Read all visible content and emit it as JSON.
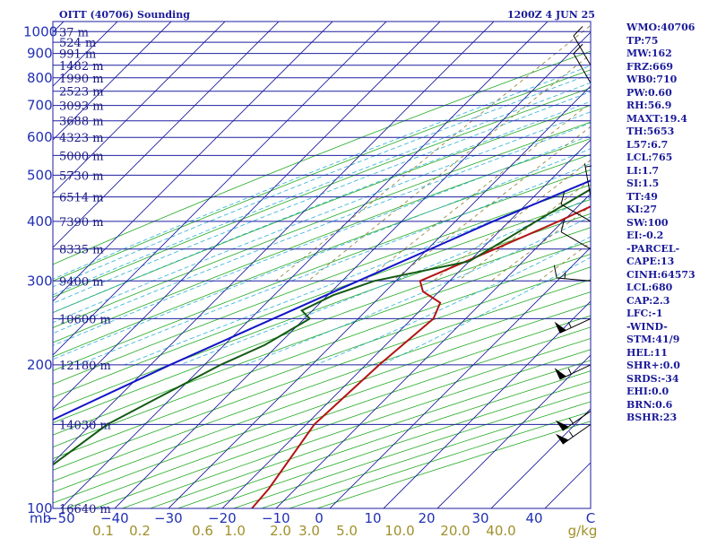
{
  "header": {
    "station_label": "OITT (40706) Sounding",
    "time_label": "1200Z  4 JUN 25"
  },
  "indices": [
    "WMO:40706",
    "TP:75",
    "MW:162",
    "FRZ:669",
    "WB0:710",
    "PW:0.60",
    "RH:56.9",
    "MAXT:19.4",
    "TH:5653",
    "L57:6.7",
    "LCL:765",
    "LI:1.7",
    "SI:1.5",
    "TT:49",
    "KI:27",
    "SW:100",
    "EI:-0.2",
    "-PARCEL-",
    "CAPE:13",
    "CINH:64573",
    "LCL:680",
    "CAP:2.3",
    "LFC:-1",
    "-WIND-",
    "STM:41/9",
    "HEL:11",
    "SHR+:0.0",
    "SRDS:-34",
    "EHI:0.0",
    "BRN:0.6",
    "BSHR:23"
  ],
  "colors": {
    "isobar": "#1e1ea0",
    "isotherm": "#1e1ea0",
    "dry_adiabat": "#22aa22",
    "moist_adiabat": "#2cb0d8",
    "mixing_ratio": "#8a7a2a",
    "temperature": "#b41414",
    "dewpoint": "#145a14",
    "parcel": "#1414c8",
    "wind": "#000000"
  },
  "chart_data": {
    "type": "skew-t",
    "title": "OITT (40706) Sounding",
    "pressure_axis": {
      "unit": "mb",
      "ticks": [
        100,
        200,
        300,
        400,
        500,
        600,
        700,
        800,
        900,
        1000
      ],
      "range": [
        1050,
        100
      ],
      "scale": "log"
    },
    "temperature_axis": {
      "unit": "C",
      "ticks": [
        -50,
        -40,
        -30,
        -20,
        -10,
        0,
        10,
        20,
        30,
        40
      ],
      "range": [
        -50,
        50
      ]
    },
    "height_labels": [
      {
        "p": 100,
        "label": "16640 m"
      },
      {
        "p": 150,
        "label": "14030 m"
      },
      {
        "p": 200,
        "label": "12180 m"
      },
      {
        "p": 250,
        "label": "10600 m"
      },
      {
        "p": 300,
        "label": "9400 m"
      },
      {
        "p": 350,
        "label": "8335 m"
      },
      {
        "p": 400,
        "label": "7390 m"
      },
      {
        "p": 450,
        "label": "6514 m"
      },
      {
        "p": 500,
        "label": "5730 m"
      },
      {
        "p": 550,
        "label": "5000 m"
      },
      {
        "p": 600,
        "label": "4323 m"
      },
      {
        "p": 650,
        "label": "3688 m"
      },
      {
        "p": 700,
        "label": "3093 m"
      },
      {
        "p": 750,
        "label": "2523 m"
      },
      {
        "p": 800,
        "label": "1990 m"
      },
      {
        "p": 850,
        "label": "1482 m"
      },
      {
        "p": 900,
        "label": "991 m"
      },
      {
        "p": 950,
        "label": "524 m"
      },
      {
        "p": 1000,
        "label": "37 m"
      }
    ],
    "mixing_ratio_ticks": [
      "0.1",
      "0.2",
      "0.6",
      "1.0",
      "2.0",
      "3.0",
      "5.0",
      "10.0",
      "20.0",
      "40.0",
      "g/kg"
    ],
    "series": [
      {
        "name": "temperature",
        "points": [
          [
            848,
            21.6
          ],
          [
            840,
            21.7
          ],
          [
            800,
            17
          ],
          [
            750,
            13.6
          ],
          [
            700,
            10
          ],
          [
            665,
            6.6
          ],
          [
            640,
            6.8
          ],
          [
            610,
            4.5
          ],
          [
            560,
            2.4
          ],
          [
            500,
            -1.8
          ],
          [
            450,
            -5.6
          ],
          [
            400,
            -10.8
          ],
          [
            350,
            -17.5
          ],
          [
            300,
            -25.5
          ],
          [
            285,
            -23
          ],
          [
            270,
            -17.7
          ],
          [
            250,
            -16
          ],
          [
            200,
            -17.5
          ],
          [
            150,
            -18.5
          ],
          [
            110,
            -15
          ],
          [
            100,
            -14.5
          ]
        ]
      },
      {
        "name": "dewpoint",
        "points": [
          [
            848,
            13.6
          ],
          [
            840,
            8.3
          ],
          [
            800,
            8.6
          ],
          [
            750,
            7.7
          ],
          [
            700,
            11.5
          ],
          [
            680,
            10
          ],
          [
            640,
            2
          ],
          [
            600,
            -1.5
          ],
          [
            580,
            -2
          ],
          [
            560,
            2.1
          ],
          [
            530,
            -4
          ],
          [
            500,
            -9
          ],
          [
            400,
            -15
          ],
          [
            330,
            -20
          ],
          [
            300,
            -34
          ],
          [
            280,
            -39
          ],
          [
            260,
            -42
          ],
          [
            250,
            -39
          ],
          [
            220,
            -42.5
          ],
          [
            200,
            -47
          ],
          [
            150,
            -57
          ],
          [
            120,
            -60
          ],
          [
            100,
            -61.7
          ]
        ]
      },
      {
        "name": "parcel",
        "points": [
          [
            848,
            21.6
          ],
          [
            800,
            16.3
          ],
          [
            765,
            12.2
          ],
          [
            700,
            5.8
          ],
          [
            600,
            -2.5
          ],
          [
            500,
            -11
          ],
          [
            400,
            -23
          ],
          [
            300,
            -37
          ],
          [
            250,
            -45.8
          ],
          [
            200,
            -56.4
          ],
          [
            150,
            -69
          ],
          [
            110,
            -80.5
          ]
        ]
      }
    ],
    "wind_barbs": [
      {
        "p": 850,
        "dir": 330,
        "speed": 10
      },
      {
        "p": 780,
        "dir": 330,
        "speed": 10
      },
      {
        "p": 450,
        "dir": 350,
        "speed": 5
      },
      {
        "p": 400,
        "dir": 300,
        "speed": 10
      },
      {
        "p": 350,
        "dir": 300,
        "speed": 10
      },
      {
        "p": 300,
        "dir": 275,
        "speed": 15
      },
      {
        "p": 250,
        "dir": 245,
        "speed": 55
      },
      {
        "p": 200,
        "dir": 245,
        "speed": 55
      },
      {
        "p": 160,
        "dir": 235,
        "speed": 55
      },
      {
        "p": 150,
        "dir": 235,
        "speed": 55
      }
    ],
    "grid": true
  }
}
